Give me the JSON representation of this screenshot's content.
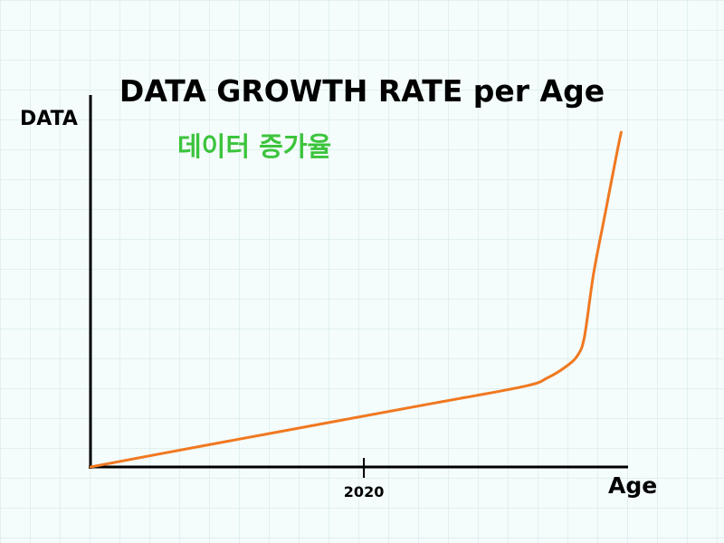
{
  "colors": {
    "line": "#f07820",
    "subtitle": "#3cc43c",
    "axis": "#000000"
  },
  "chart_data": {
    "type": "line",
    "title": "DATA GROWTH RATE per Age",
    "subtitle": "데이터 증가율",
    "xlabel": "Age",
    "ylabel": "DATA",
    "x_ticks": [
      {
        "value": 2020,
        "label": "2020"
      }
    ],
    "xlim": [
      1901,
      2135
    ],
    "ylim": [
      0,
      100
    ],
    "series": [
      {
        "x": [
          1901,
          1950,
          2000,
          2050,
          2090,
          2100,
          2108,
          2113,
          2116,
          2120,
          2125,
          2130,
          2132
        ],
        "y": [
          0,
          5.7,
          11.4,
          17.1,
          21.7,
          24,
          27,
          30,
          35,
          52,
          68,
          84,
          90
        ]
      }
    ],
    "grid": false,
    "legend": "none"
  }
}
